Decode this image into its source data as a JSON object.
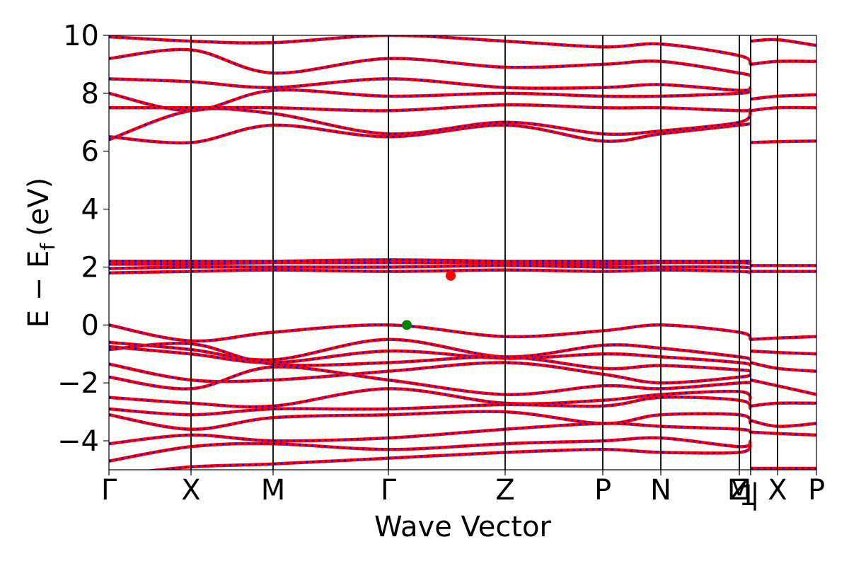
{
  "chart_data": {
    "type": "line",
    "title": "",
    "xlabel": "Wave Vector",
    "ylabel_main": "E − E",
    "ylabel_sub": "f",
    "ylabel_unit": "(eV)",
    "ylim": [
      -5,
      10
    ],
    "xlim": [
      0,
      1
    ],
    "grid": false,
    "legend": "none",
    "y_ticks": [
      {
        "value": -4,
        "label": "−4"
      },
      {
        "value": -2,
        "label": "−2"
      },
      {
        "value": 0,
        "label": "0"
      },
      {
        "value": 2,
        "label": "2"
      },
      {
        "value": 4,
        "label": "4"
      },
      {
        "value": 6,
        "label": "6"
      },
      {
        "value": 8,
        "label": "8"
      },
      {
        "value": 10,
        "label": "10"
      }
    ],
    "kpoints": [
      {
        "x": 0.0,
        "label": "Γ"
      },
      {
        "x": 0.116,
        "label": "X"
      },
      {
        "x": 0.232,
        "label": "M"
      },
      {
        "x": 0.395,
        "label": "Γ"
      },
      {
        "x": 0.56,
        "label": "Z"
      },
      {
        "x": 0.698,
        "label": "P"
      },
      {
        "x": 0.78,
        "label": "N"
      },
      {
        "x": 0.891,
        "label": "Z"
      },
      {
        "x": 0.891,
        "label": "M"
      },
      {
        "x": 0.907,
        "label": "1"
      },
      {
        "x": 0.907,
        "label": "|"
      },
      {
        "x": 0.945,
        "label": "X"
      },
      {
        "x": 1.0,
        "label": "P"
      }
    ],
    "colors": {
      "spin_up": "#ff0000",
      "spin_down": "#0000ff",
      "vbm": "#008000",
      "cbm": "#ff0000",
      "frame": "#000000"
    },
    "vbm": {
      "x": 0.421,
      "y": 0.0
    },
    "cbm": {
      "x": 0.483,
      "y": 1.7
    },
    "series": [
      {
        "segment": 0,
        "x": [
          0.0,
          0.116,
          0.232,
          0.395,
          0.56,
          0.698,
          0.78,
          0.891,
          0.907
        ],
        "y": [
          0.0,
          -0.55,
          -0.25,
          0.0,
          -0.4,
          -0.2,
          0.0,
          -0.25,
          -0.5
        ]
      },
      {
        "segment": 0,
        "x": [
          0.0,
          0.116,
          0.232,
          0.395,
          0.56,
          0.698,
          0.78,
          0.891,
          0.907
        ],
        "y": [
          -0.6,
          -0.85,
          -1.2,
          -0.5,
          -1.1,
          -0.7,
          -0.8,
          -1.1,
          -1.2
        ]
      },
      {
        "segment": 0,
        "x": [
          0.0,
          0.116,
          0.232,
          0.395,
          0.56,
          0.698,
          0.78,
          0.891,
          0.907
        ],
        "y": [
          -0.75,
          -1.0,
          -1.3,
          -0.9,
          -1.15,
          -1.0,
          -1.1,
          -1.3,
          -1.4
        ]
      },
      {
        "segment": 0,
        "x": [
          0.0,
          0.116,
          0.232,
          0.395,
          0.56,
          0.698,
          0.78,
          0.891,
          0.907
        ],
        "y": [
          -0.85,
          -0.65,
          -1.35,
          -1.3,
          -1.1,
          -1.5,
          -1.4,
          -1.55,
          -1.6
        ]
      },
      {
        "segment": 0,
        "x": [
          0.0,
          0.116,
          0.232,
          0.395,
          0.56,
          0.698,
          0.78,
          0.891,
          0.907
        ],
        "y": [
          -1.35,
          -1.9,
          -1.9,
          -1.6,
          -1.3,
          -1.7,
          -2.0,
          -1.8,
          -1.7
        ]
      },
      {
        "segment": 0,
        "x": [
          0.0,
          0.116,
          0.232,
          0.395,
          0.56,
          0.698,
          0.78,
          0.891,
          0.907
        ],
        "y": [
          -1.8,
          -2.2,
          -1.45,
          -1.9,
          -2.4,
          -2.1,
          -2.2,
          -2.0,
          -2.0
        ]
      },
      {
        "segment": 0,
        "x": [
          0.0,
          0.116,
          0.232,
          0.395,
          0.56,
          0.698,
          0.78,
          0.891,
          0.907
        ],
        "y": [
          -2.5,
          -2.7,
          -2.8,
          -2.2,
          -2.7,
          -2.6,
          -2.4,
          -2.3,
          -2.6
        ]
      },
      {
        "segment": 0,
        "x": [
          0.0,
          0.116,
          0.232,
          0.395,
          0.56,
          0.698,
          0.78,
          0.891,
          0.907
        ],
        "y": [
          -2.9,
          -3.1,
          -2.9,
          -2.9,
          -2.75,
          -2.8,
          -2.5,
          -2.6,
          -2.9
        ]
      },
      {
        "segment": 0,
        "x": [
          0.0,
          0.116,
          0.232,
          0.395,
          0.56,
          0.698,
          0.78,
          0.891,
          0.907
        ],
        "y": [
          -3.1,
          -3.6,
          -3.2,
          -3.1,
          -3.0,
          -3.4,
          -3.1,
          -3.1,
          -3.4
        ]
      },
      {
        "segment": 0,
        "x": [
          0.0,
          0.116,
          0.232,
          0.395,
          0.56,
          0.698,
          0.78,
          0.891,
          0.907
        ],
        "y": [
          -4.1,
          -3.8,
          -4.0,
          -3.9,
          -3.6,
          -3.4,
          -3.5,
          -3.6,
          -3.7
        ]
      },
      {
        "segment": 0,
        "x": [
          0.0,
          0.116,
          0.232,
          0.395,
          0.56,
          0.698,
          0.78,
          0.891,
          0.907
        ],
        "y": [
          -4.7,
          -4.2,
          -4.1,
          -4.3,
          -4.1,
          -4.0,
          -3.9,
          -4.2,
          -4.0
        ]
      },
      {
        "segment": 0,
        "x": [
          0.0,
          0.116,
          0.232,
          0.395,
          0.56,
          0.698,
          0.78,
          0.891,
          0.907
        ],
        "y": [
          -5.2,
          -4.9,
          -4.8,
          -4.6,
          -4.4,
          -4.3,
          -4.4,
          -4.4,
          -4.1
        ]
      },
      {
        "segment": 0,
        "x": [
          0.0,
          0.116,
          0.232,
          0.395,
          0.56,
          0.698,
          0.78,
          0.891,
          0.907
        ],
        "y": [
          1.8,
          1.85,
          1.9,
          1.85,
          1.9,
          1.85,
          1.9,
          1.85,
          1.8
        ]
      },
      {
        "segment": 0,
        "x": [
          0.0,
          0.116,
          0.232,
          0.395,
          0.56,
          0.698,
          0.78,
          0.891,
          0.907
        ],
        "y": [
          1.95,
          2.0,
          2.0,
          2.0,
          2.05,
          2.0,
          2.0,
          2.0,
          1.95
        ]
      },
      {
        "segment": 0,
        "x": [
          0.0,
          0.116,
          0.232,
          0.395,
          0.56,
          0.698,
          0.78,
          0.891,
          0.907
        ],
        "y": [
          2.1,
          2.1,
          2.15,
          2.15,
          2.15,
          2.1,
          2.15,
          2.15,
          2.1
        ]
      },
      {
        "segment": 0,
        "x": [
          0.0,
          0.116,
          0.232,
          0.395,
          0.56,
          0.698,
          0.78,
          0.891,
          0.907
        ],
        "y": [
          2.2,
          2.2,
          2.2,
          2.25,
          2.2,
          2.2,
          2.2,
          2.2,
          2.2
        ]
      },
      {
        "segment": 0,
        "x": [
          0.0,
          0.116,
          0.232,
          0.395,
          0.56,
          0.698,
          0.78,
          0.891,
          0.907
        ],
        "y": [
          6.5,
          6.3,
          6.9,
          6.5,
          6.9,
          6.35,
          6.6,
          6.9,
          6.95
        ]
      },
      {
        "segment": 0,
        "x": [
          0.0,
          0.116,
          0.232,
          0.395,
          0.56,
          0.698,
          0.78,
          0.891,
          0.907
        ],
        "y": [
          6.4,
          7.4,
          7.3,
          6.6,
          7.0,
          6.6,
          6.7,
          7.0,
          7.4
        ]
      },
      {
        "segment": 0,
        "x": [
          0.0,
          0.116,
          0.232,
          0.395,
          0.56,
          0.698,
          0.78,
          0.891,
          0.907
        ],
        "y": [
          7.5,
          7.5,
          7.5,
          7.4,
          7.6,
          7.5,
          7.5,
          7.4,
          7.45
        ]
      },
      {
        "segment": 0,
        "x": [
          0.0,
          0.116,
          0.232,
          0.395,
          0.56,
          0.698,
          0.78,
          0.891,
          0.907
        ],
        "y": [
          8.0,
          7.4,
          8.1,
          7.9,
          8.0,
          7.9,
          7.9,
          8.0,
          8.1
        ]
      },
      {
        "segment": 0,
        "x": [
          0.0,
          0.116,
          0.232,
          0.395,
          0.56,
          0.698,
          0.78,
          0.891,
          0.907
        ],
        "y": [
          8.5,
          8.4,
          8.2,
          8.5,
          8.2,
          8.2,
          8.3,
          8.1,
          8.2
        ]
      },
      {
        "segment": 0,
        "x": [
          0.0,
          0.116,
          0.232,
          0.395,
          0.56,
          0.698,
          0.78,
          0.891,
          0.907
        ],
        "y": [
          9.2,
          9.5,
          8.7,
          9.2,
          8.9,
          9.0,
          9.1,
          8.7,
          8.6
        ]
      },
      {
        "segment": 0,
        "x": [
          0.0,
          0.116,
          0.232,
          0.395,
          0.56,
          0.698,
          0.78,
          0.891,
          0.907
        ],
        "y": [
          9.95,
          9.8,
          9.75,
          10.0,
          9.8,
          9.6,
          9.7,
          9.3,
          9.0
        ]
      },
      {
        "segment": 1,
        "x": [
          0.907,
          0.945,
          1.0
        ],
        "y": [
          -0.5,
          -0.45,
          -0.4
        ]
      },
      {
        "segment": 1,
        "x": [
          0.907,
          0.945,
          1.0
        ],
        "y": [
          -0.9,
          -0.95,
          -1.0
        ]
      },
      {
        "segment": 1,
        "x": [
          0.907,
          0.945,
          1.0
        ],
        "y": [
          -1.3,
          -1.5,
          -1.6
        ]
      },
      {
        "segment": 1,
        "x": [
          0.907,
          0.945,
          1.0
        ],
        "y": [
          -1.9,
          -2.1,
          -2.4
        ]
      },
      {
        "segment": 1,
        "x": [
          0.907,
          0.945,
          1.0
        ],
        "y": [
          -2.8,
          -2.7,
          -2.7
        ]
      },
      {
        "segment": 1,
        "x": [
          0.907,
          0.945,
          1.0
        ],
        "y": [
          -3.3,
          -3.5,
          -3.4
        ]
      },
      {
        "segment": 1,
        "x": [
          0.907,
          0.945,
          1.0
        ],
        "y": [
          -3.7,
          -3.75,
          -3.8
        ]
      },
      {
        "segment": 1,
        "x": [
          0.907,
          0.945,
          1.0
        ],
        "y": [
          -4.95,
          -4.95,
          -4.95
        ]
      },
      {
        "segment": 1,
        "x": [
          0.907,
          0.945,
          1.0
        ],
        "y": [
          1.85,
          1.85,
          1.85
        ]
      },
      {
        "segment": 1,
        "x": [
          0.907,
          0.945,
          1.0
        ],
        "y": [
          2.05,
          2.05,
          2.05
        ]
      },
      {
        "segment": 1,
        "x": [
          0.907,
          0.945,
          1.0
        ],
        "y": [
          6.3,
          6.33,
          6.35
        ]
      },
      {
        "segment": 1,
        "x": [
          0.907,
          0.945,
          1.0
        ],
        "y": [
          7.4,
          7.5,
          7.5
        ]
      },
      {
        "segment": 1,
        "x": [
          0.907,
          0.945,
          1.0
        ],
        "y": [
          7.8,
          7.9,
          7.95
        ]
      },
      {
        "segment": 1,
        "x": [
          0.907,
          0.945,
          1.0
        ],
        "y": [
          9.0,
          9.1,
          9.1
        ]
      },
      {
        "segment": 1,
        "x": [
          0.907,
          0.945,
          1.0
        ],
        "y": [
          9.8,
          9.85,
          9.65
        ]
      }
    ]
  }
}
